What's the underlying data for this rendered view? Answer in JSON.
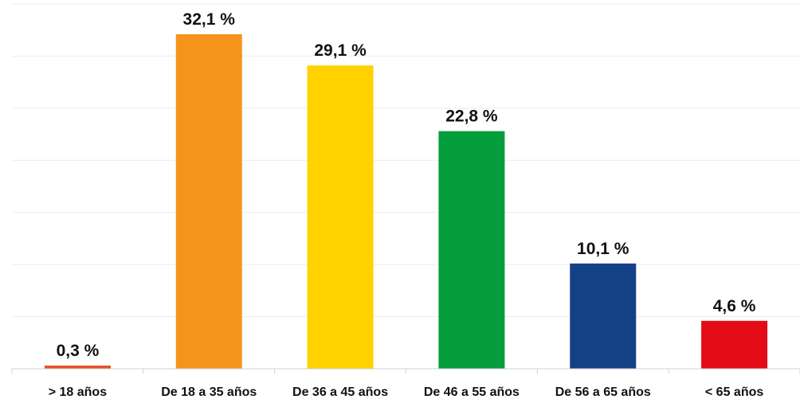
{
  "chart_data": {
    "type": "bar",
    "categories": [
      "> 18 años",
      "De 18 a 35 años",
      "De 36 a 45 años",
      "De 46 a 55 años",
      "De 56 a 65 años",
      "< 65 años"
    ],
    "values": [
      0.3,
      32.1,
      29.1,
      22.8,
      10.1,
      4.6
    ],
    "data_labels": [
      "0,3 %",
      "32,1 %",
      "29,1 %",
      "22,8 %",
      "10,1 %",
      "4,6 %"
    ],
    "colors": [
      "#e5502a",
      "#f5951c",
      "#ffd200",
      "#059e3c",
      "#144186",
      "#e30d17"
    ],
    "ylim": [
      0,
      35
    ],
    "grid": true,
    "legend": "none",
    "title": "",
    "xlabel": "",
    "ylabel": ""
  }
}
